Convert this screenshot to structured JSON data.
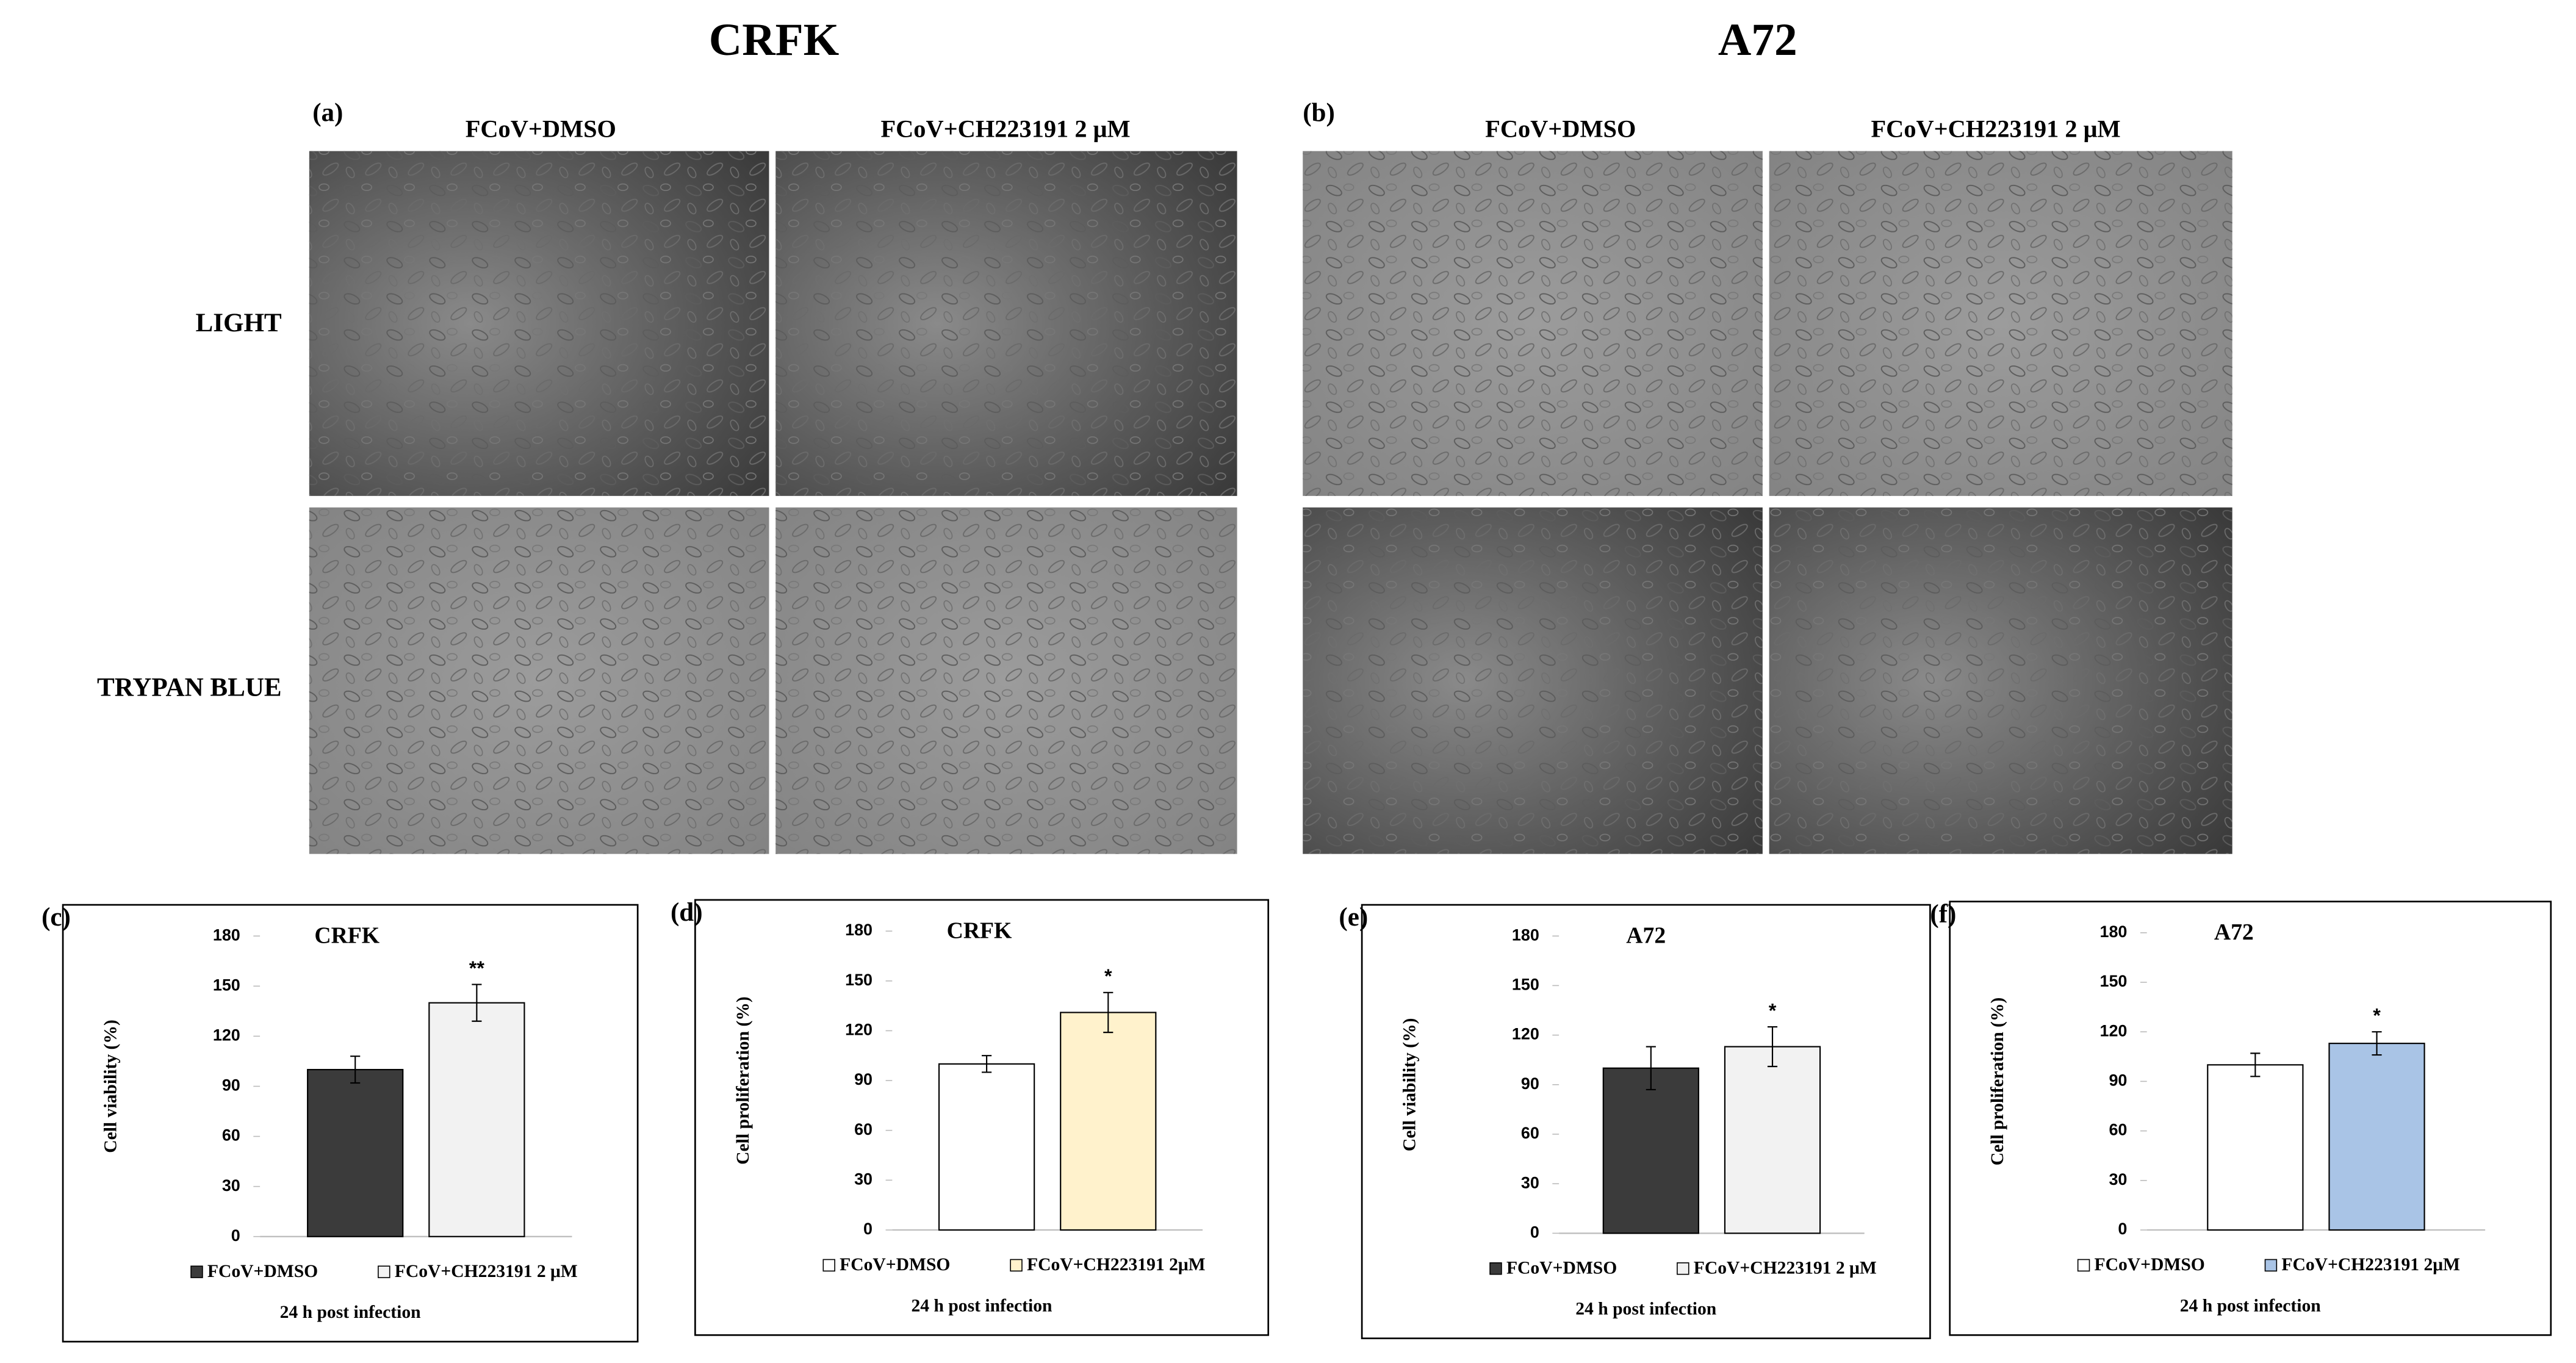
{
  "figure": {
    "titles": [
      "CRFK",
      "A72"
    ],
    "panels": [
      {
        "label": "(a)",
        "columns": [
          "FCoV+DMSO",
          "FCoV+CH223191 2 μM"
        ]
      },
      {
        "label": "(b)",
        "columns": [
          "FCoV+DMSO",
          "FCoV+CH223191 2 μM"
        ]
      }
    ],
    "rows": [
      "LIGHT",
      "TRYPAN BLUE"
    ]
  },
  "chart_data": [
    {
      "type": "bar",
      "label": "(c)",
      "title": "CRFK",
      "y_label": "Cell viability (%)",
      "x_label": "24 h post infection",
      "ylim": [
        0,
        180
      ],
      "yticks": [
        0,
        30,
        60,
        90,
        120,
        150,
        180
      ],
      "series": [
        {
          "name": "FCoV+DMSO",
          "color": "#3b3b3b",
          "values": [
            100
          ],
          "errors": [
            8
          ]
        },
        {
          "name": "FCoV+CH223191 2 μM",
          "color": "#f2f2f2",
          "values": [
            140
          ],
          "errors": [
            11
          ],
          "annotation": "**"
        }
      ]
    },
    {
      "type": "bar",
      "label": "(d)",
      "title": "CRFK",
      "y_label": "Cell proliferation (%)",
      "x_label": "24 h post infection",
      "ylim": [
        0,
        180
      ],
      "yticks": [
        0,
        30,
        60,
        90,
        120,
        150,
        180
      ],
      "series": [
        {
          "name": "FCoV+DMSO",
          "color": "#ffffff",
          "values": [
            100
          ],
          "errors": [
            5
          ]
        },
        {
          "name": "FCoV+CH223191 2μM",
          "color": "#fff2cc",
          "values": [
            131
          ],
          "errors": [
            12
          ],
          "annotation": "*"
        }
      ]
    },
    {
      "type": "bar",
      "label": "(e)",
      "title": "A72",
      "y_label": "Cell viability (%)",
      "x_label": "24 h post infection",
      "ylim": [
        0,
        180
      ],
      "yticks": [
        0,
        30,
        60,
        90,
        120,
        150,
        180
      ],
      "series": [
        {
          "name": "FCoV+DMSO",
          "color": "#3b3b3b",
          "values": [
            100
          ],
          "errors": [
            13
          ]
        },
        {
          "name": "FCoV+CH223191 2 μM",
          "color": "#f2f2f2",
          "values": [
            113
          ],
          "errors": [
            12
          ],
          "annotation": "*"
        }
      ]
    },
    {
      "type": "bar",
      "label": "(f)",
      "title": "A72",
      "y_label": "Cell proliferation (%)",
      "x_label": "24 h post infection",
      "ylim": [
        0,
        180
      ],
      "yticks": [
        0,
        30,
        60,
        90,
        120,
        150,
        180
      ],
      "series": [
        {
          "name": "FCoV+DMSO",
          "color": "#ffffff",
          "values": [
            100
          ],
          "errors": [
            7
          ]
        },
        {
          "name": "FCoV+CH223191 2μM",
          "color": "#a9c4e6",
          "values": [
            113
          ],
          "errors": [
            7
          ],
          "annotation": "*"
        }
      ]
    }
  ]
}
